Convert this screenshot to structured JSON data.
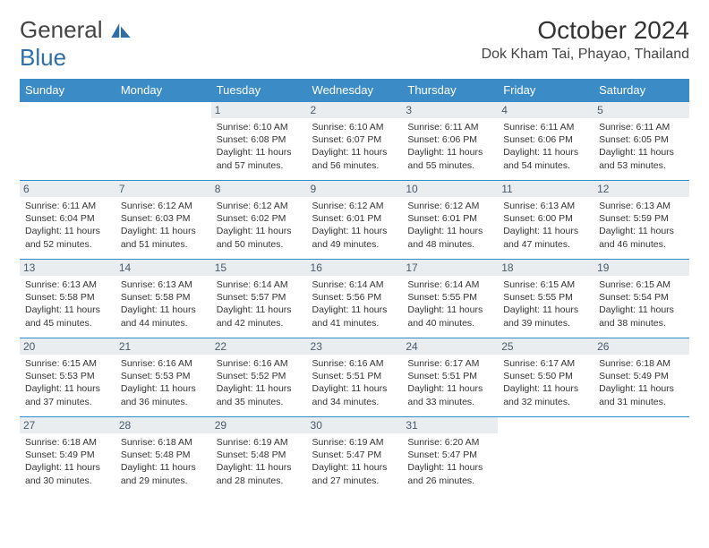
{
  "logo": {
    "text1": "General",
    "text2": "Blue",
    "color1": "#555555",
    "color2": "#2f6fa8"
  },
  "title": "October 2024",
  "location": "Dok Kham Tai, Phayao, Thailand",
  "header_bg": "#3b8bc6",
  "daynum_bg": "#e9edf0",
  "border_color": "#3b8bc6",
  "days_of_week": [
    "Sunday",
    "Monday",
    "Tuesday",
    "Wednesday",
    "Thursday",
    "Friday",
    "Saturday"
  ],
  "first_weekday_index": 2,
  "num_days": 31,
  "sun_data": {
    "1": {
      "sunrise": "6:10 AM",
      "sunset": "6:08 PM",
      "daylight": "11 hours and 57 minutes."
    },
    "2": {
      "sunrise": "6:10 AM",
      "sunset": "6:07 PM",
      "daylight": "11 hours and 56 minutes."
    },
    "3": {
      "sunrise": "6:11 AM",
      "sunset": "6:06 PM",
      "daylight": "11 hours and 55 minutes."
    },
    "4": {
      "sunrise": "6:11 AM",
      "sunset": "6:06 PM",
      "daylight": "11 hours and 54 minutes."
    },
    "5": {
      "sunrise": "6:11 AM",
      "sunset": "6:05 PM",
      "daylight": "11 hours and 53 minutes."
    },
    "6": {
      "sunrise": "6:11 AM",
      "sunset": "6:04 PM",
      "daylight": "11 hours and 52 minutes."
    },
    "7": {
      "sunrise": "6:12 AM",
      "sunset": "6:03 PM",
      "daylight": "11 hours and 51 minutes."
    },
    "8": {
      "sunrise": "6:12 AM",
      "sunset": "6:02 PM",
      "daylight": "11 hours and 50 minutes."
    },
    "9": {
      "sunrise": "6:12 AM",
      "sunset": "6:01 PM",
      "daylight": "11 hours and 49 minutes."
    },
    "10": {
      "sunrise": "6:12 AM",
      "sunset": "6:01 PM",
      "daylight": "11 hours and 48 minutes."
    },
    "11": {
      "sunrise": "6:13 AM",
      "sunset": "6:00 PM",
      "daylight": "11 hours and 47 minutes."
    },
    "12": {
      "sunrise": "6:13 AM",
      "sunset": "5:59 PM",
      "daylight": "11 hours and 46 minutes."
    },
    "13": {
      "sunrise": "6:13 AM",
      "sunset": "5:58 PM",
      "daylight": "11 hours and 45 minutes."
    },
    "14": {
      "sunrise": "6:13 AM",
      "sunset": "5:58 PM",
      "daylight": "11 hours and 44 minutes."
    },
    "15": {
      "sunrise": "6:14 AM",
      "sunset": "5:57 PM",
      "daylight": "11 hours and 42 minutes."
    },
    "16": {
      "sunrise": "6:14 AM",
      "sunset": "5:56 PM",
      "daylight": "11 hours and 41 minutes."
    },
    "17": {
      "sunrise": "6:14 AM",
      "sunset": "5:55 PM",
      "daylight": "11 hours and 40 minutes."
    },
    "18": {
      "sunrise": "6:15 AM",
      "sunset": "5:55 PM",
      "daylight": "11 hours and 39 minutes."
    },
    "19": {
      "sunrise": "6:15 AM",
      "sunset": "5:54 PM",
      "daylight": "11 hours and 38 minutes."
    },
    "20": {
      "sunrise": "6:15 AM",
      "sunset": "5:53 PM",
      "daylight": "11 hours and 37 minutes."
    },
    "21": {
      "sunrise": "6:16 AM",
      "sunset": "5:53 PM",
      "daylight": "11 hours and 36 minutes."
    },
    "22": {
      "sunrise": "6:16 AM",
      "sunset": "5:52 PM",
      "daylight": "11 hours and 35 minutes."
    },
    "23": {
      "sunrise": "6:16 AM",
      "sunset": "5:51 PM",
      "daylight": "11 hours and 34 minutes."
    },
    "24": {
      "sunrise": "6:17 AM",
      "sunset": "5:51 PM",
      "daylight": "11 hours and 33 minutes."
    },
    "25": {
      "sunrise": "6:17 AM",
      "sunset": "5:50 PM",
      "daylight": "11 hours and 32 minutes."
    },
    "26": {
      "sunrise": "6:18 AM",
      "sunset": "5:49 PM",
      "daylight": "11 hours and 31 minutes."
    },
    "27": {
      "sunrise": "6:18 AM",
      "sunset": "5:49 PM",
      "daylight": "11 hours and 30 minutes."
    },
    "28": {
      "sunrise": "6:18 AM",
      "sunset": "5:48 PM",
      "daylight": "11 hours and 29 minutes."
    },
    "29": {
      "sunrise": "6:19 AM",
      "sunset": "5:48 PM",
      "daylight": "11 hours and 28 minutes."
    },
    "30": {
      "sunrise": "6:19 AM",
      "sunset": "5:47 PM",
      "daylight": "11 hours and 27 minutes."
    },
    "31": {
      "sunrise": "6:20 AM",
      "sunset": "5:47 PM",
      "daylight": "11 hours and 26 minutes."
    }
  },
  "labels": {
    "sunrise": "Sunrise:",
    "sunset": "Sunset:",
    "daylight": "Daylight:"
  }
}
